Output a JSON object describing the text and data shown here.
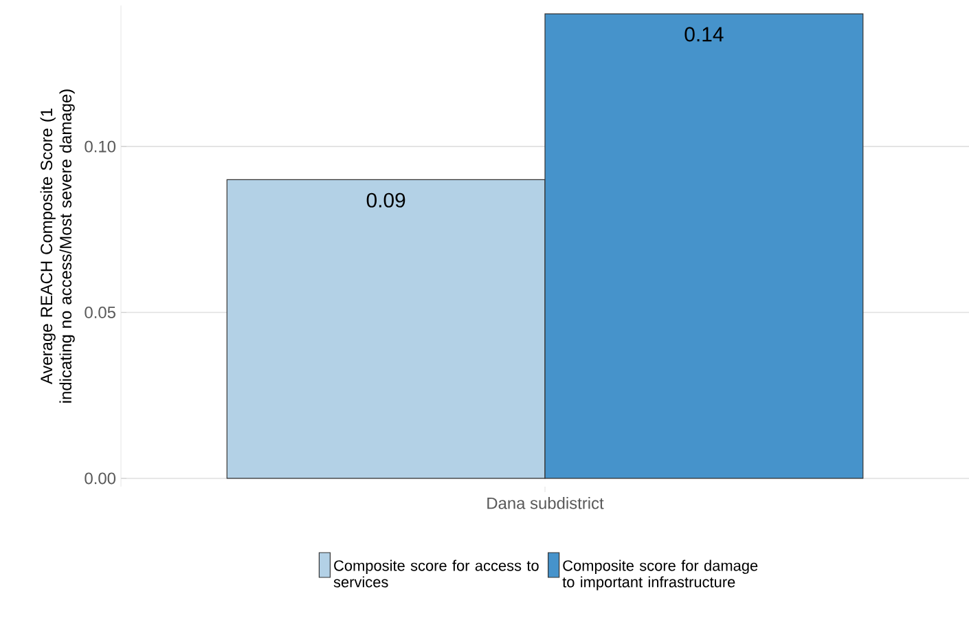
{
  "chart_data": {
    "type": "bar",
    "categories": [
      "Dana subdistrict"
    ],
    "series": [
      {
        "name": "Composite score for access to services",
        "color": "#b3d1e6",
        "values": [
          0.09
        ]
      },
      {
        "name": "Composite score for damage to important infrastructure",
        "color": "#4693cb",
        "values": [
          0.14
        ]
      }
    ],
    "ylabel": "Average REACH Composite Score (1 indicating no access/Most severe damage)",
    "ylim": [
      -0.0025,
      0.1425
    ],
    "yticks": [
      {
        "value": 0,
        "label": "0.00"
      },
      {
        "value": 0.05,
        "label": "0.05"
      },
      {
        "value": 0.1,
        "label": "0.10"
      }
    ],
    "grid": "y",
    "legend": "bottom",
    "data_labels": true
  }
}
